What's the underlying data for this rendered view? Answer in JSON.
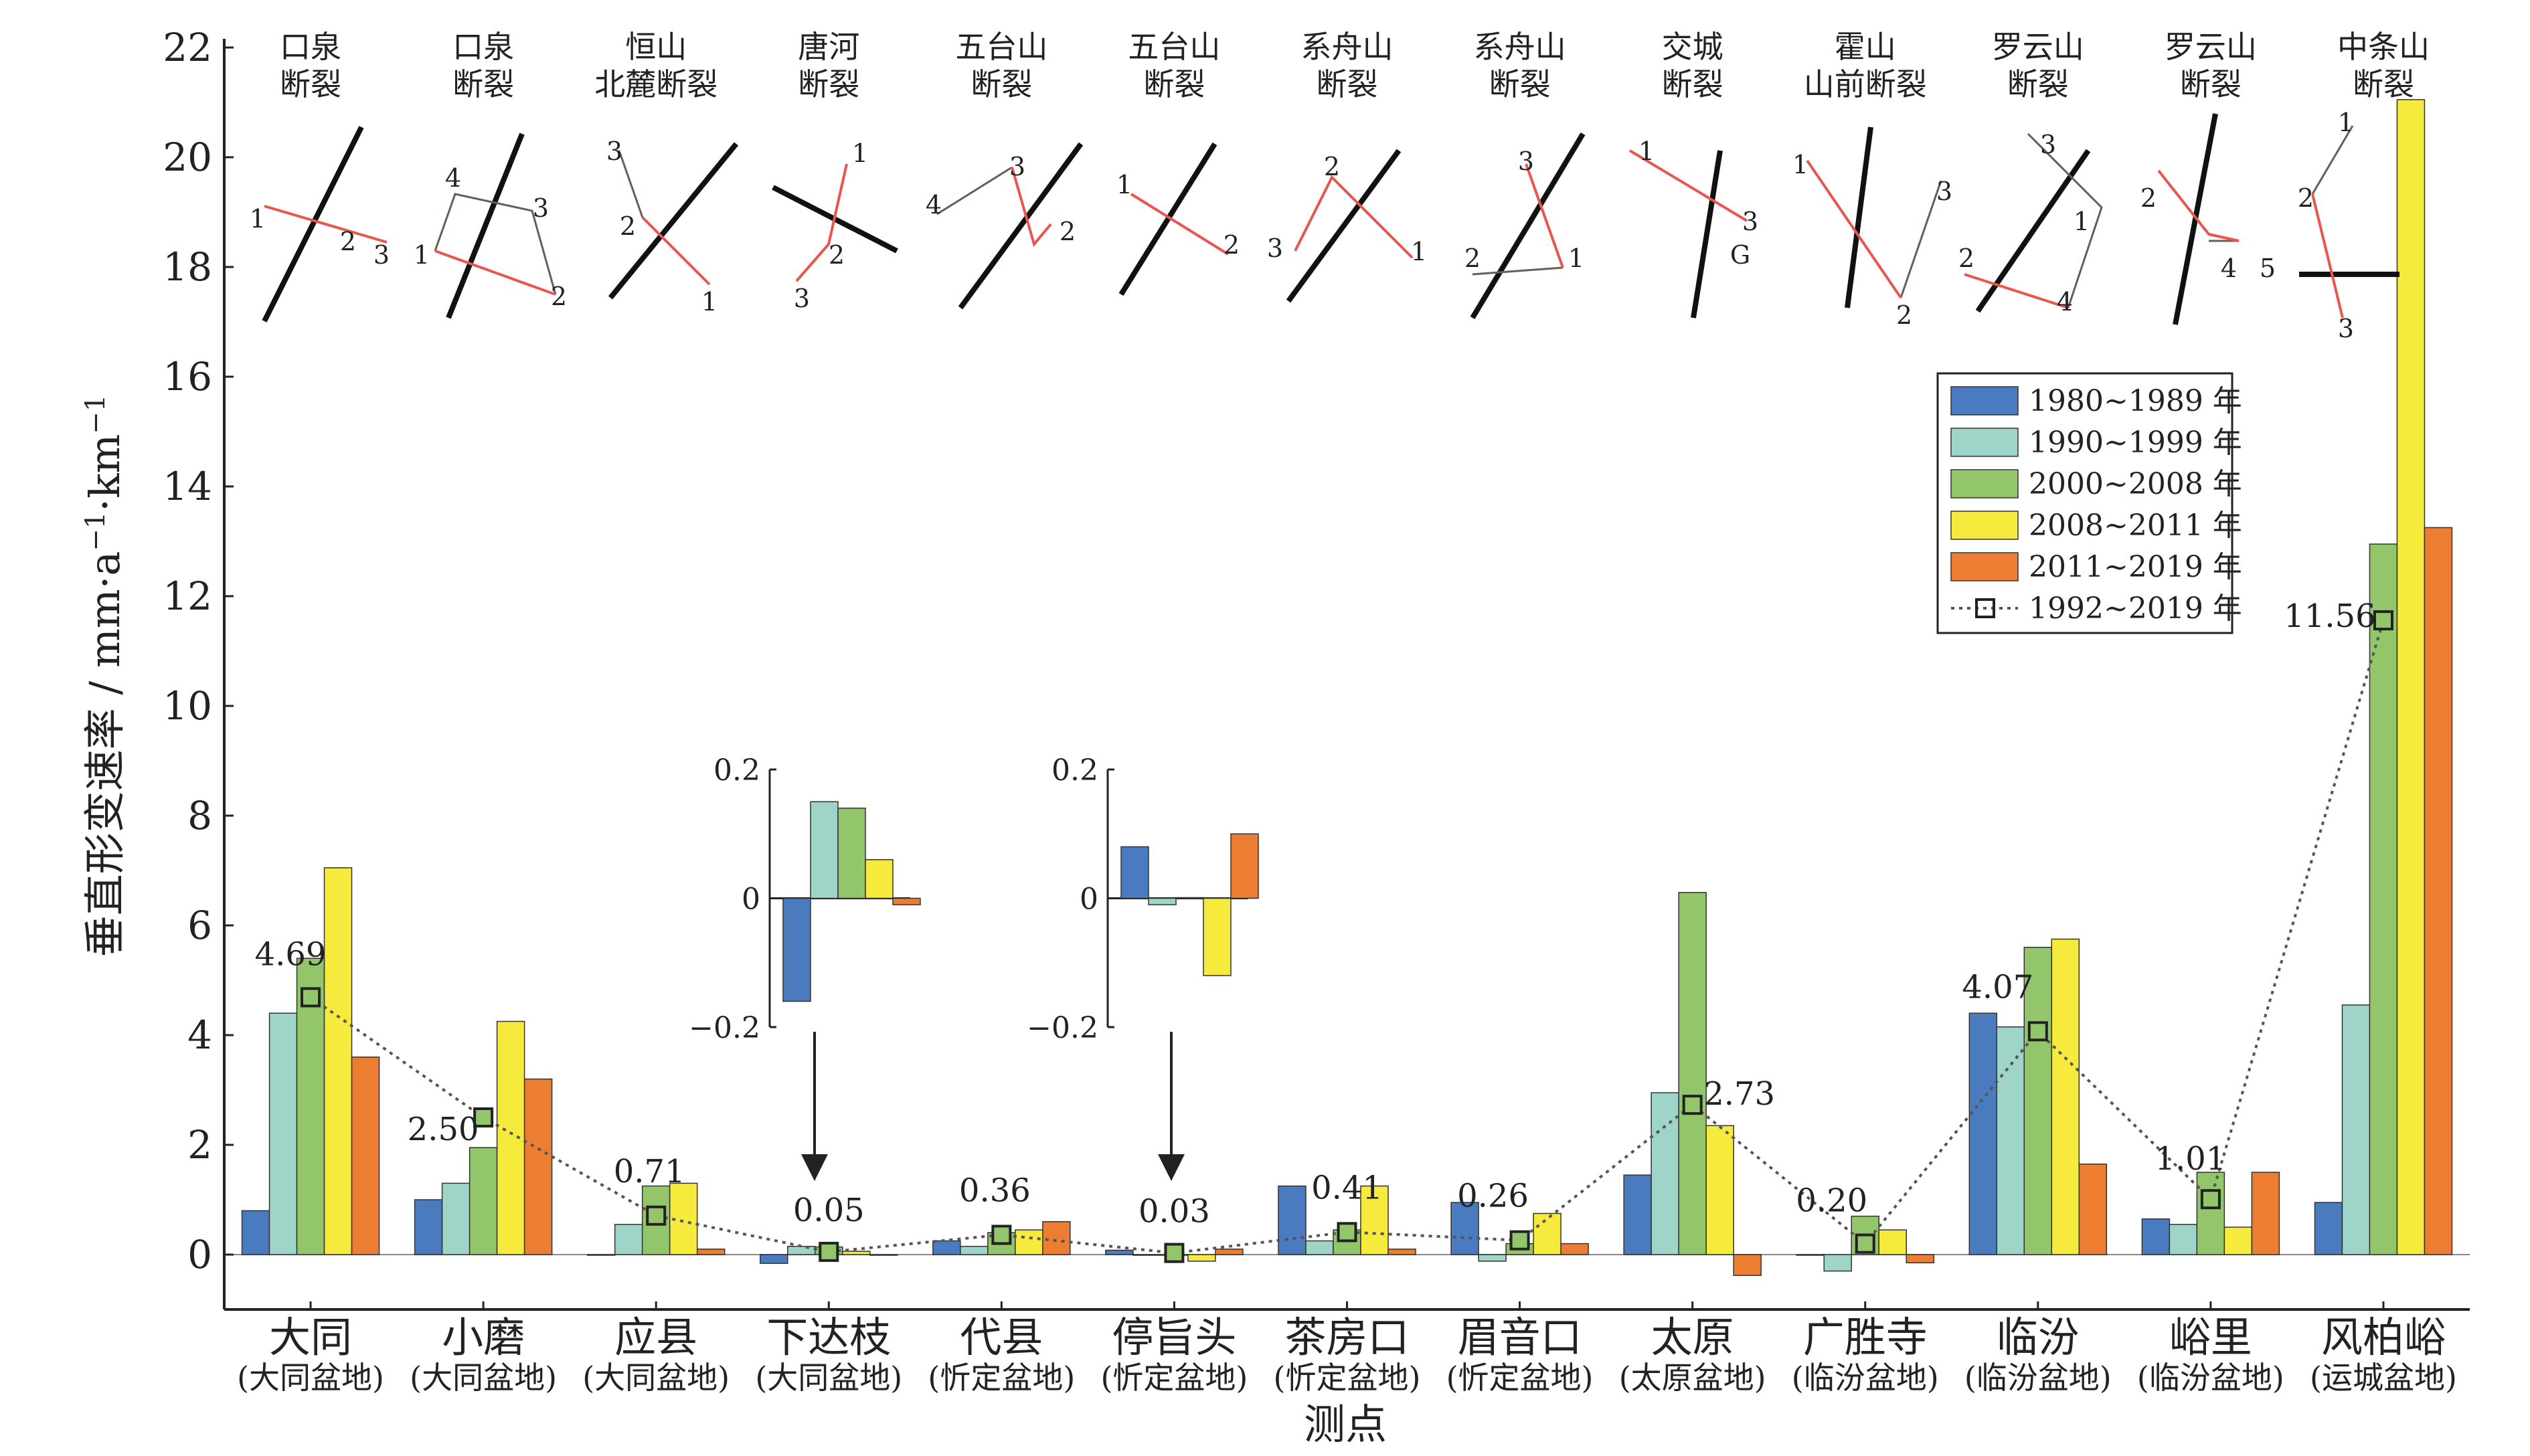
{
  "chart_data": {
    "type": "bar",
    "title": "",
    "ylabel_main": "垂直形变速率 / mm·a",
    "ylabel_sup1": "−1",
    "ylabel_mid": "·km",
    "ylabel_sup2": "−1",
    "xlabel": "测点",
    "ylim": [
      -1,
      22
    ],
    "yticks": [
      0,
      2,
      4,
      6,
      8,
      10,
      12,
      14,
      16,
      18,
      20,
      22
    ],
    "categories": [
      "大同",
      "小磨",
      "应县",
      "下达枝",
      "代县",
      "停旨头",
      "茶房口",
      "眉音口",
      "太原",
      "广胜寺",
      "临汾",
      "峪里",
      "风柏峪"
    ],
    "category_sublabels": [
      "(大同盆地)",
      "(大同盆地)",
      "(大同盆地)",
      "(大同盆地)",
      "(忻定盆地)",
      "(忻定盆地)",
      "(忻定盆地)",
      "(忻定盆地)",
      "(太原盆地)",
      "(临汾盆地)",
      "(临汾盆地)",
      "(临汾盆地)",
      "(运城盆地)"
    ],
    "faults_line1": [
      "口泉",
      "口泉",
      "恒山",
      "唐河",
      "五台山",
      "五台山",
      "系舟山",
      "系舟山",
      "交城",
      "霍山",
      "罗云山",
      "罗云山",
      "中条山"
    ],
    "faults_line2": [
      "断裂",
      "断裂",
      "北麓断裂",
      "断裂",
      "断裂",
      "断裂",
      "断裂",
      "断裂",
      "断裂",
      "山前断裂",
      "断裂",
      "断裂",
      "断裂"
    ],
    "series": [
      {
        "name": "1980~1989 年",
        "color": "#4a7bbf",
        "values": [
          0.8,
          1.0,
          0.0,
          -0.16,
          0.25,
          0.08,
          1.25,
          0.95,
          1.45,
          0.0,
          4.4,
          0.65,
          0.95
        ]
      },
      {
        "name": "1990~1999 年",
        "color": "#9fd5c9",
        "values": [
          4.4,
          1.3,
          0.55,
          0.15,
          0.15,
          -0.01,
          0.25,
          -0.12,
          2.95,
          -0.3,
          4.15,
          0.55,
          4.55
        ]
      },
      {
        "name": "2000~2008 年",
        "color": "#93c66a",
        "values": [
          5.4,
          1.95,
          1.25,
          0.14,
          0.4,
          0.0,
          0.45,
          0.2,
          6.6,
          0.7,
          5.6,
          1.5,
          12.95
        ]
      },
      {
        "name": "2008~2011 年",
        "color": "#f6ea3c",
        "values": [
          7.05,
          4.25,
          1.3,
          0.06,
          0.45,
          -0.12,
          1.25,
          0.75,
          2.35,
          0.45,
          5.75,
          0.5,
          21.05
        ]
      },
      {
        "name": "2011~2019 年",
        "color": "#ed7d31",
        "values": [
          3.6,
          3.2,
          0.1,
          -0.01,
          0.6,
          0.1,
          0.1,
          0.2,
          -0.38,
          -0.15,
          1.65,
          1.5,
          13.25
        ]
      }
    ],
    "line_series": {
      "name": "1992~2019 年",
      "color": "#555555",
      "values": [
        4.69,
        2.5,
        0.71,
        0.05,
        0.36,
        0.03,
        0.41,
        0.26,
        2.73,
        0.2,
        4.07,
        1.01,
        11.56
      ],
      "labels": [
        "4.69",
        "2.50",
        "0.71",
        "0.05",
        "0.36",
        "0.03",
        "0.41",
        "0.26",
        "2.73",
        "0.20",
        "4.07",
        "1.01",
        "11.56"
      ]
    },
    "legend_position": "right, upper-middle",
    "insets": [
      {
        "station": "下达枝",
        "ylim": [
          -0.2,
          0.2
        ],
        "ticks": [
          "0.2",
          "0",
          "−0.2"
        ],
        "values": [
          -0.16,
          0.15,
          0.14,
          0.06,
          -0.01
        ]
      },
      {
        "station": "停旨头",
        "ylim": [
          -0.2,
          0.2
        ],
        "ticks": [
          "0.2",
          "0",
          "−0.2"
        ],
        "values": [
          0.08,
          -0.01,
          0.0,
          -0.12,
          0.1
        ]
      }
    ],
    "fault_diagram_labels": [
      [
        "1",
        "2",
        "3"
      ],
      [
        "4",
        "3",
        "1",
        "2"
      ],
      [
        "3",
        "2",
        "1"
      ],
      [
        "1",
        "2",
        "3"
      ],
      [
        "4",
        "3",
        "2"
      ],
      [
        "1",
        "2"
      ],
      [
        "2",
        "3",
        "1"
      ],
      [
        "3",
        "2",
        "1"
      ],
      [
        "1",
        "3",
        "G"
      ],
      [
        "1",
        "3",
        "2"
      ],
      [
        "2",
        "3",
        "1",
        "4"
      ],
      [
        "2",
        "4",
        "5"
      ],
      [
        "1",
        "2",
        "3"
      ]
    ]
  }
}
